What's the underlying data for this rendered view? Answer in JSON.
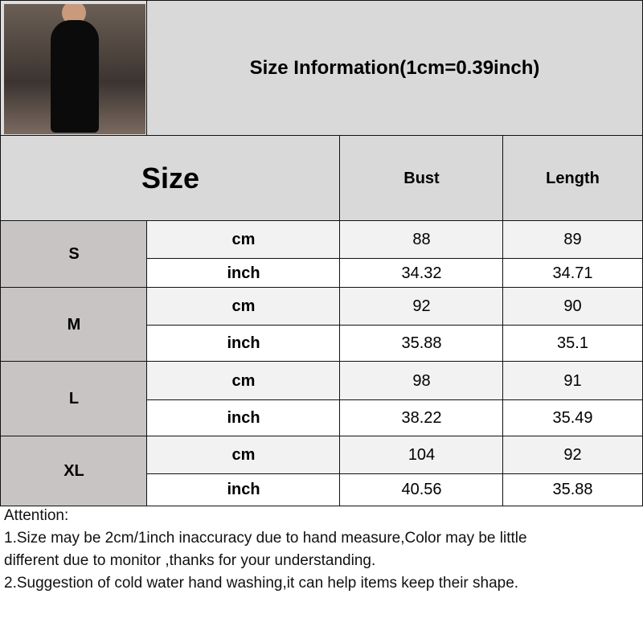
{
  "title": "Size Information(1cm=0.39inch)",
  "header": {
    "size": "Size",
    "columns": [
      "Bust",
      "Length"
    ]
  },
  "rows": [
    {
      "size": "S",
      "cm": {
        "unit": "cm",
        "bust": "88",
        "length": "89"
      },
      "inch": {
        "unit": "inch",
        "bust": "34.32",
        "length": "34.71"
      }
    },
    {
      "size": "M",
      "cm": {
        "unit": "cm",
        "bust": "92",
        "length": "90"
      },
      "inch": {
        "unit": "inch",
        "bust": "35.88",
        "length": "35.1"
      }
    },
    {
      "size": "L",
      "cm": {
        "unit": "cm",
        "bust": "98",
        "length": "91"
      },
      "inch": {
        "unit": "inch",
        "bust": "38.22",
        "length": "35.49"
      }
    },
    {
      "size": "XL",
      "cm": {
        "unit": "cm",
        "bust": "104",
        "length": "92"
      },
      "inch": {
        "unit": "inch",
        "bust": "40.56",
        "length": "35.88"
      }
    }
  ],
  "notes": [
    "Attention:",
    "1.Size may be 2cm/1inch inaccuracy due to hand measure,Color may be little",
    "different due to monitor ,thanks for your understanding.",
    "2.Suggestion of cold water hand washing,it can help items keep their shape."
  ],
  "colors": {
    "header": "#d9d9d9",
    "size_cell": "#c8c4c4",
    "cm_row": "#f2f2f2",
    "inch_row": "#ffffff"
  }
}
